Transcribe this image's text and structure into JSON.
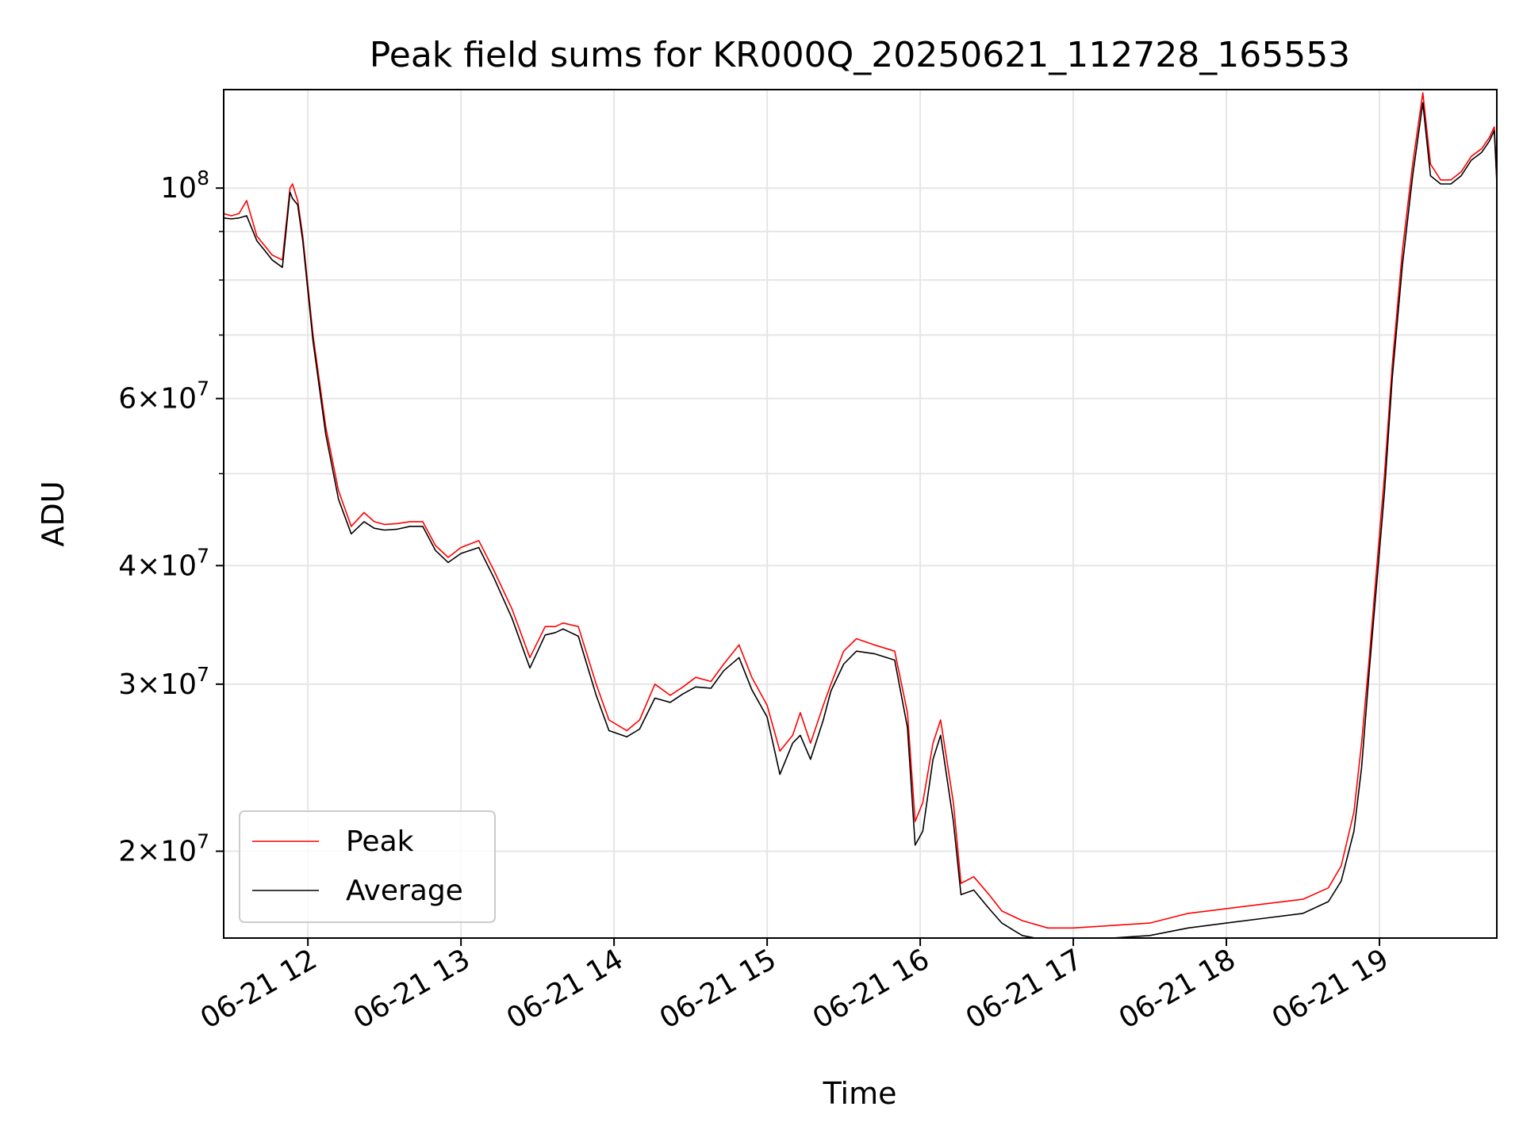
{
  "chart_data": {
    "type": "line",
    "title": "Peak field sums for KR000Q_20250621_112728_165553",
    "xlabel": "Time",
    "ylabel": "ADU",
    "x_scale": "time",
    "y_scale": "log",
    "xlim": [
      "06-21 11:27",
      "06-21 19:46"
    ],
    "ylim": [
      16200000,
      127000000
    ],
    "x_tick_labels": [
      "06-21 12",
      "06-21 13",
      "06-21 14",
      "06-21 15",
      "06-21 16",
      "06-21 17",
      "06-21 18",
      "06-21 19"
    ],
    "x_tick_hours": [
      12,
      13,
      14,
      15,
      16,
      17,
      18,
      19
    ],
    "y_major_ticks": [
      {
        "value": 100000000,
        "mantissa": "",
        "exp": "8"
      },
      {
        "value": 60000000,
        "mantissa": "6",
        "exp": "7"
      },
      {
        "value": 40000000,
        "mantissa": "4",
        "exp": "7"
      },
      {
        "value": 30000000,
        "mantissa": "3",
        "exp": "7"
      },
      {
        "value": 20000000,
        "mantissa": "2",
        "exp": "7"
      }
    ],
    "y_minor_ticks": [
      50000000,
      70000000,
      80000000,
      90000000
    ],
    "grid": true,
    "legend_position": "lower-left",
    "series": [
      {
        "name": "Peak",
        "color": "#ff0000",
        "x": [
          "11:27",
          "11:30",
          "11:33",
          "11:36",
          "11:40",
          "11:43",
          "11:46",
          "11:50",
          "11:53",
          "11:54",
          "11:56",
          "11:58",
          "12:02",
          "12:07",
          "12:12",
          "12:17",
          "12:22",
          "12:26",
          "12:30",
          "12:35",
          "12:40",
          "12:45",
          "12:50",
          "12:55",
          "13:00",
          "13:07",
          "13:13",
          "13:20",
          "13:27",
          "13:33",
          "13:37",
          "13:40",
          "13:46",
          "13:53",
          "13:58",
          "14:05",
          "14:10",
          "14:16",
          "14:22",
          "14:27",
          "14:32",
          "14:38",
          "14:43",
          "14:49",
          "14:54",
          "15:00",
          "15:05",
          "15:10",
          "15:13",
          "15:17",
          "15:22",
          "15:25",
          "15:30",
          "15:35",
          "15:42",
          "15:50",
          "15:55",
          "15:58",
          "16:01",
          "16:05",
          "16:08",
          "16:13",
          "16:16",
          "16:21",
          "16:27",
          "16:32",
          "16:40",
          "16:50",
          "17:00",
          "17:15",
          "17:30",
          "17:45",
          "18:00",
          "18:15",
          "18:30",
          "18:40",
          "18:45",
          "18:50",
          "18:53",
          "18:56",
          "18:59",
          "19:02",
          "19:05",
          "19:09",
          "19:13",
          "19:17",
          "19:20",
          "19:24",
          "19:28",
          "19:32",
          "19:36",
          "19:40",
          "19:43",
          "19:45",
          "19:46"
        ],
        "values": [
          94000000,
          93500000,
          94000000,
          97000000,
          89000000,
          87000000,
          85000000,
          84000000,
          100000000,
          101000000,
          97000000,
          89000000,
          70000000,
          56000000,
          48000000,
          44000000,
          45500000,
          44500000,
          44200000,
          44300000,
          44500000,
          44500000,
          42000000,
          40800000,
          41800000,
          42500000,
          39500000,
          36000000,
          32000000,
          34500000,
          34500000,
          34800000,
          34500000,
          30000000,
          27500000,
          26800000,
          27500000,
          30000000,
          29200000,
          29800000,
          30500000,
          30200000,
          31500000,
          33000000,
          30500000,
          28500000,
          25500000,
          26500000,
          28000000,
          26000000,
          28500000,
          30000000,
          32500000,
          33500000,
          33000000,
          32500000,
          28000000,
          21500000,
          22500000,
          26000000,
          27500000,
          22500000,
          18500000,
          18800000,
          18000000,
          17300000,
          16900000,
          16600000,
          16600000,
          16700000,
          16800000,
          17200000,
          17400000,
          17600000,
          17800000,
          18300000,
          19300000,
          22000000,
          26000000,
          32000000,
          40000000,
          50000000,
          65000000,
          86000000,
          106000000,
          126000000,
          106000000,
          102000000,
          102000000,
          104000000,
          108000000,
          110000000,
          113000000,
          116000000,
          101000000
        ]
      },
      {
        "name": "Average",
        "color": "#000000",
        "x": [
          "11:27",
          "11:30",
          "11:33",
          "11:36",
          "11:40",
          "11:43",
          "11:46",
          "11:50",
          "11:53",
          "11:54",
          "11:56",
          "11:58",
          "12:02",
          "12:07",
          "12:12",
          "12:17",
          "12:22",
          "12:26",
          "12:30",
          "12:35",
          "12:40",
          "12:45",
          "12:50",
          "12:55",
          "13:00",
          "13:07",
          "13:13",
          "13:20",
          "13:27",
          "13:33",
          "13:37",
          "13:40",
          "13:46",
          "13:53",
          "13:58",
          "14:05",
          "14:10",
          "14:16",
          "14:22",
          "14:27",
          "14:32",
          "14:38",
          "14:43",
          "14:49",
          "14:54",
          "15:00",
          "15:05",
          "15:10",
          "15:13",
          "15:17",
          "15:22",
          "15:25",
          "15:30",
          "15:35",
          "15:42",
          "15:50",
          "15:55",
          "15:58",
          "16:01",
          "16:05",
          "16:08",
          "16:13",
          "16:16",
          "16:21",
          "16:27",
          "16:32",
          "16:40",
          "16:50",
          "17:00",
          "17:15",
          "17:30",
          "17:45",
          "18:00",
          "18:15",
          "18:30",
          "18:40",
          "18:45",
          "18:50",
          "18:53",
          "18:56",
          "18:59",
          "19:02",
          "19:05",
          "19:09",
          "19:13",
          "19:17",
          "19:20",
          "19:24",
          "19:28",
          "19:32",
          "19:36",
          "19:40",
          "19:43",
          "19:45",
          "19:46"
        ],
        "values": [
          93000000,
          92800000,
          93000000,
          93500000,
          88000000,
          86000000,
          84000000,
          82500000,
          99000000,
          97500000,
          96000000,
          88000000,
          69000000,
          55000000,
          47000000,
          43200000,
          44500000,
          43800000,
          43600000,
          43700000,
          44000000,
          44000000,
          41500000,
          40300000,
          41200000,
          41800000,
          38800000,
          35200000,
          31200000,
          33800000,
          34000000,
          34300000,
          33700000,
          29200000,
          26800000,
          26400000,
          26900000,
          29000000,
          28700000,
          29300000,
          29800000,
          29700000,
          31000000,
          32000000,
          29600000,
          27700000,
          24100000,
          26000000,
          26500000,
          25000000,
          27500000,
          29500000,
          31500000,
          32500000,
          32300000,
          31800000,
          27000000,
          20300000,
          21000000,
          25000000,
          26500000,
          21500000,
          18000000,
          18200000,
          17400000,
          16800000,
          16300000,
          16100000,
          16100000,
          16200000,
          16300000,
          16600000,
          16800000,
          17000000,
          17200000,
          17700000,
          18600000,
          21000000,
          24500000,
          31000000,
          38500000,
          48000000,
          63000000,
          83000000,
          103000000,
          123000000,
          103000000,
          101000000,
          101000000,
          103000000,
          107000000,
          109000000,
          112000000,
          115000000,
          102000000
        ]
      }
    ]
  }
}
